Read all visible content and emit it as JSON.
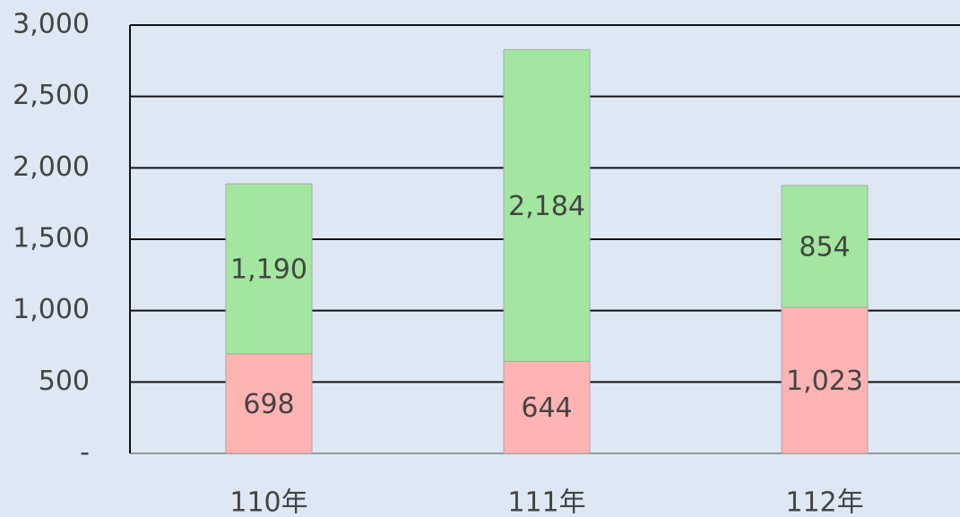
{
  "chart_data": {
    "type": "stacked_bar",
    "categories": [
      "110年",
      "111年",
      "112年"
    ],
    "series": [
      {
        "color": "#ffb3b3",
        "values": [
          698,
          644,
          1023
        ],
        "value_labels": [
          "698",
          "644",
          "1,023"
        ]
      },
      {
        "color": "#a3e6a0",
        "values": [
          1190,
          2184,
          854
        ],
        "value_labels": [
          "1,190",
          "2,184",
          "854"
        ]
      }
    ],
    "ylim": [
      0,
      3000
    ],
    "yticks": [
      {
        "value": 0,
        "label": "-"
      },
      500,
      {
        "value": 1000,
        "label": "1,000"
      },
      {
        "value": 1500,
        "label": "1,500"
      },
      {
        "value": 2000,
        "label": "2,000"
      },
      {
        "value": 2500,
        "label": "2,500"
      },
      {
        "value": 3000,
        "label": "3,000"
      }
    ],
    "grid": true
  }
}
